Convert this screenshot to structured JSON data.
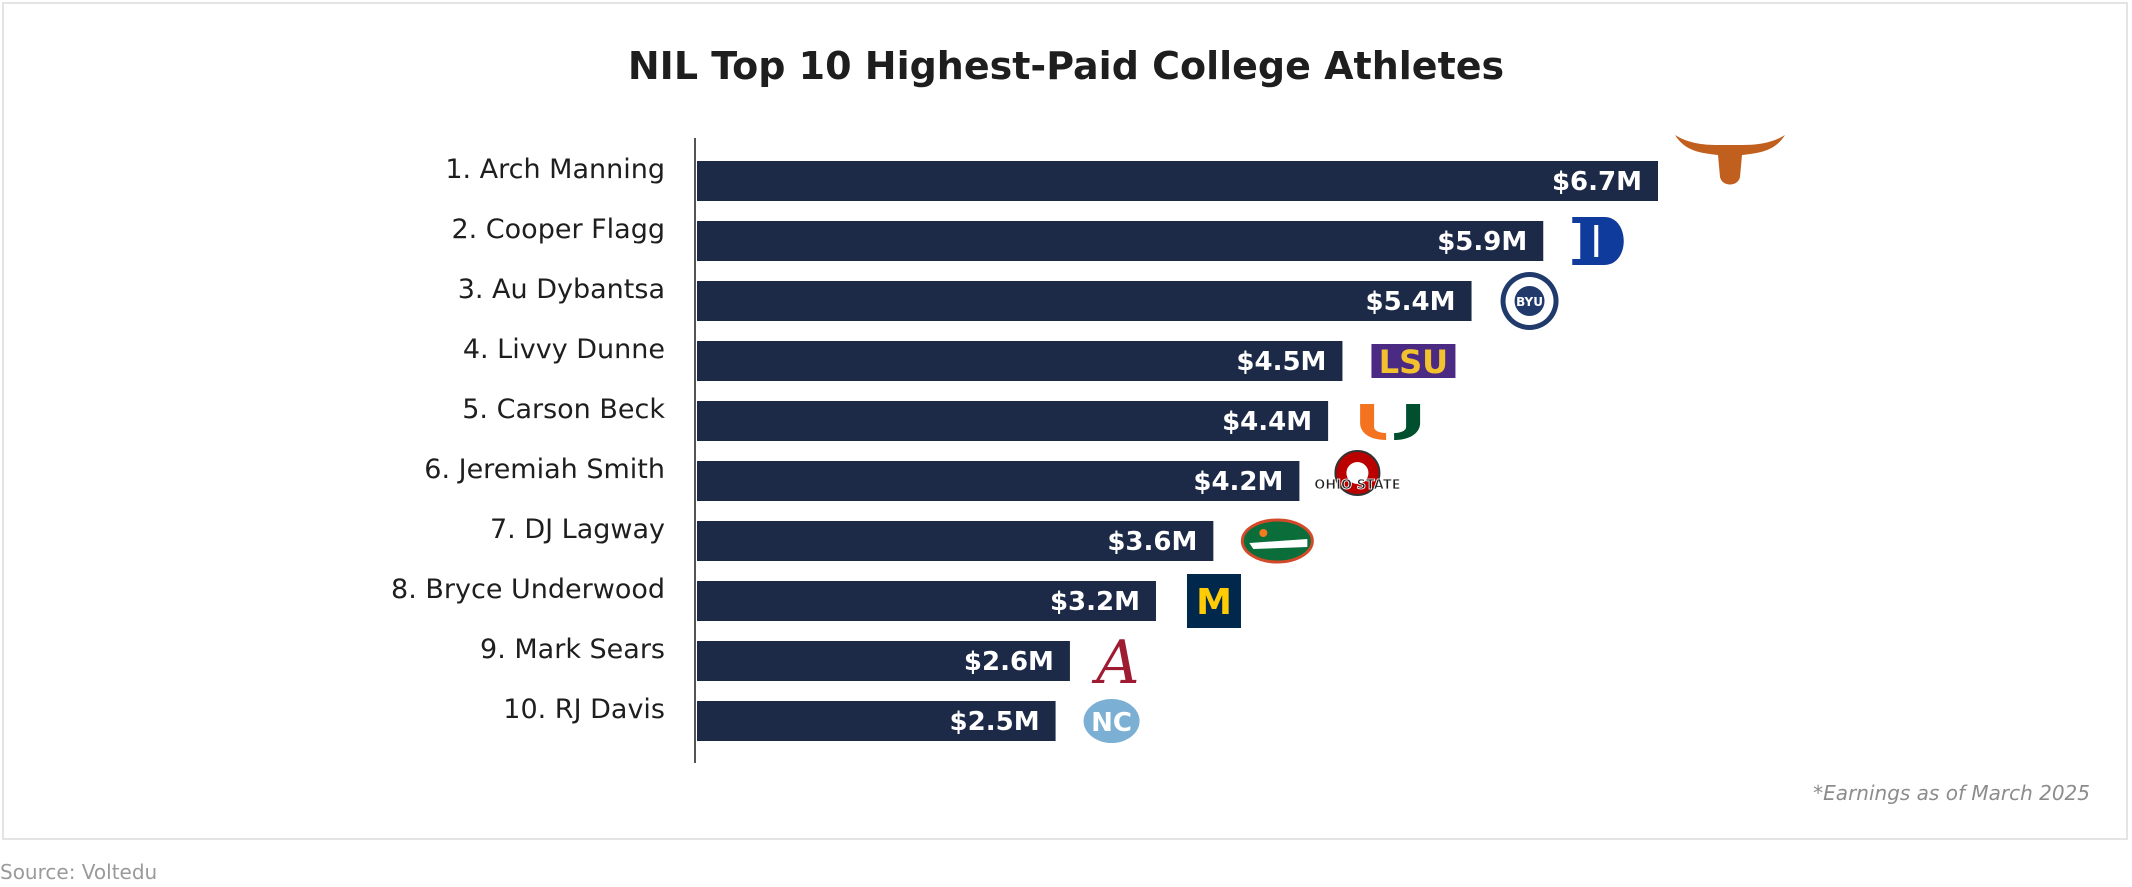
{
  "chart_data": {
    "type": "bar",
    "orientation": "horizontal",
    "title": "NIL Top 10 Highest-Paid College Athletes",
    "categories": [
      "1. Arch Manning",
      "2. Cooper Flagg",
      "3. Au Dybantsa",
      "4. Livvy Dunne",
      "5. Carson Beck",
      "6. Jeremiah Smith",
      "7. DJ Lagway",
      "8. Bryce Underwood",
      "9. Mark Sears",
      "10. RJ Davis"
    ],
    "values": [
      6.7,
      5.9,
      5.4,
      4.5,
      4.4,
      4.2,
      3.6,
      3.2,
      2.6,
      2.5
    ],
    "value_labels": [
      "$6.7M",
      "$5.9M",
      "$5.4M",
      "$4.5M",
      "$4.4M",
      "$4.2M",
      "$3.6M",
      "$3.2M",
      "$2.6M",
      "$2.5M"
    ],
    "team_logos": [
      "texas-longhorn-logo",
      "duke-logo",
      "byu-seal-logo",
      "lsu-logo",
      "miami-u-logo",
      "ohio-state-logo",
      "florida-gator-logo",
      "michigan-logo",
      "alabama-logo",
      "unc-logo"
    ],
    "logo_texts": {
      "byu": "BYU",
      "lsu": "LSU",
      "ohio_state": "OHIO STATE",
      "michigan": "M",
      "alabama": "A",
      "unc": "NC",
      "duke": "D"
    },
    "xlim": [
      0,
      6.7
    ],
    "bar_color": "#1c2a48",
    "grid": false,
    "legend": "none"
  },
  "footnote": "*Earnings as of March 2025",
  "source": "Source: Voltedu"
}
